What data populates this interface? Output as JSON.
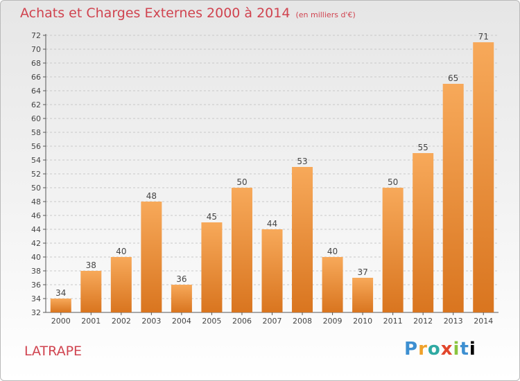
{
  "title": "Achats et Charges Externes 2000 à 2014",
  "subtitle": "(en milliers d'€)",
  "place": "LATRAPE",
  "logo": "Proxiti",
  "colors": {
    "title": "#d0434f",
    "bar_light": "#f7a95a",
    "bar_dark": "#d9751f",
    "grid": "#c8c8c8"
  },
  "chart_data": {
    "type": "bar",
    "categories": [
      "2000",
      "2001",
      "2002",
      "2003",
      "2004",
      "2005",
      "2006",
      "2007",
      "2008",
      "2009",
      "2010",
      "2011",
      "2012",
      "2013",
      "2014"
    ],
    "values": [
      34,
      38,
      40,
      48,
      36,
      45,
      50,
      44,
      53,
      40,
      37,
      50,
      55,
      65,
      71
    ],
    "ylim": [
      32,
      72
    ],
    "ytick_step": 2,
    "grid": "horizontal dashed",
    "xlabel": "",
    "ylabel": ""
  }
}
